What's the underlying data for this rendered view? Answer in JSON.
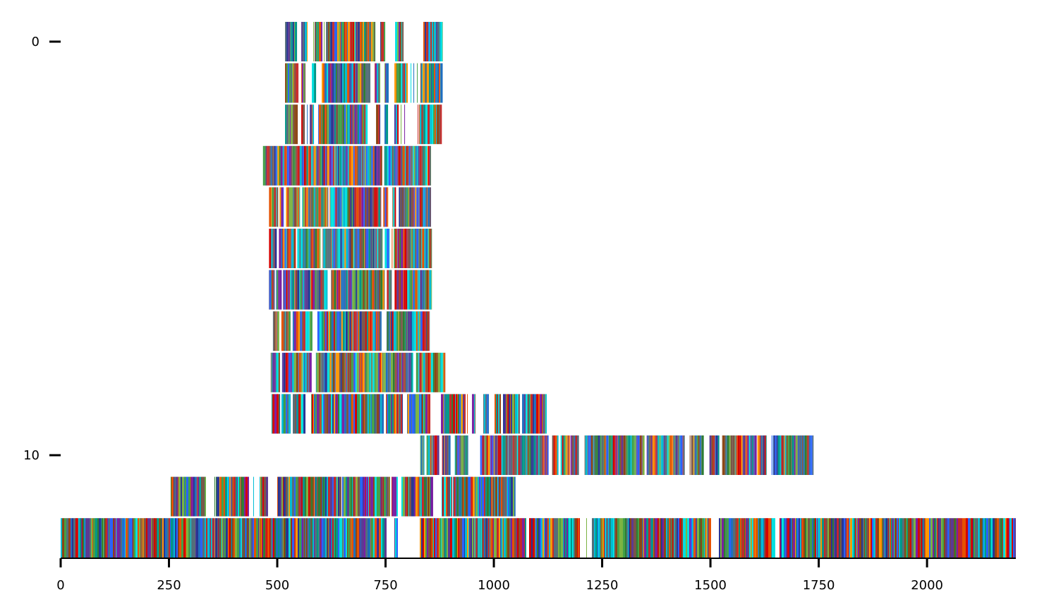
{
  "chart_data": {
    "type": "bar",
    "description_free": true,
    "orientation": "horizontal",
    "xlim": [
      0,
      2205
    ],
    "ylim": [
      -0.5,
      12.5
    ],
    "x_ticks": [
      0,
      250,
      500,
      750,
      1000,
      1250,
      1500,
      1750,
      2000
    ],
    "x_tick_labels": [
      "0",
      "250",
      "500",
      "750",
      "1000",
      "1250",
      "1500",
      "1750",
      "2000"
    ],
    "y_ticks": [
      0,
      10
    ],
    "y_tick_labels": [
      "0",
      "10"
    ],
    "palette": [
      "#1f6fbf",
      "#2e7d32",
      "#e65100",
      "#ff9800",
      "#8b4513",
      "#5c3a92",
      "#00bcd4",
      "#d50000",
      "#2962ff",
      "#009688",
      "#7cb342",
      "#795548",
      "#283593",
      "#00e0e0",
      "#43a047",
      "#c62828",
      "#7b1fa2",
      "#546e7a"
    ],
    "rows": [
      {
        "row": 0,
        "start": 518,
        "end": 882,
        "gaps": [
          [
            548,
            555
          ],
          [
            570,
            585
          ],
          [
            605,
            612
          ],
          [
            723,
            738
          ],
          [
            750,
            770
          ],
          [
            790,
            838
          ]
        ]
      },
      {
        "row": 1,
        "start": 518,
        "end": 882,
        "gaps": [
          [
            548,
            554
          ],
          [
            565,
            580
          ],
          [
            590,
            604
          ],
          [
            715,
            725
          ],
          [
            738,
            748
          ],
          [
            755,
            768
          ],
          [
            800,
            830
          ]
        ]
      },
      {
        "row": 2,
        "start": 518,
        "end": 880,
        "gaps": [
          [
            545,
            555
          ],
          [
            565,
            575
          ],
          [
            585,
            595
          ],
          [
            708,
            728
          ],
          [
            738,
            748
          ],
          [
            755,
            770
          ],
          [
            780,
            828
          ]
        ]
      },
      {
        "row": 3,
        "start": 467,
        "end": 855,
        "gaps": [
          [
            742,
            748
          ]
        ]
      },
      {
        "row": 4,
        "start": 481,
        "end": 855,
        "gaps": [
          [
            502,
            507
          ],
          [
            515,
            520
          ],
          [
            553,
            558
          ],
          [
            618,
            624
          ],
          [
            740,
            745
          ],
          [
            757,
            765
          ],
          [
            775,
            780
          ]
        ]
      },
      {
        "row": 5,
        "start": 481,
        "end": 857,
        "gaps": [
          [
            498,
            505
          ],
          [
            543,
            547
          ],
          [
            600,
            604
          ],
          [
            740,
            748
          ],
          [
            760,
            768
          ]
        ]
      },
      {
        "row": 6,
        "start": 481,
        "end": 857,
        "gaps": [
          [
            493,
            498
          ],
          [
            510,
            514
          ],
          [
            615,
            625
          ],
          [
            748,
            754
          ],
          [
            765,
            773
          ]
        ]
      },
      {
        "row": 7,
        "start": 490,
        "end": 852,
        "gaps": [
          [
            505,
            510
          ],
          [
            530,
            535
          ],
          [
            580,
            592
          ],
          [
            740,
            752
          ]
        ]
      },
      {
        "row": 8,
        "start": 485,
        "end": 888,
        "gaps": [
          [
            505,
            510
          ],
          [
            580,
            588
          ],
          [
            815,
            822
          ]
        ]
      },
      {
        "row": 9,
        "start": 487,
        "end": 1122,
        "gaps": [
          [
            508,
            512
          ],
          [
            530,
            534
          ],
          [
            565,
            578
          ],
          [
            745,
            752
          ],
          [
            790,
            800
          ],
          [
            855,
            878
          ],
          [
            935,
            950
          ],
          [
            960,
            975
          ],
          [
            988,
            1003
          ],
          [
            1015,
            1020
          ],
          [
            1060,
            1065
          ]
        ]
      },
      {
        "row": 10,
        "start": 830,
        "end": 1738,
        "gaps": [
          [
            840,
            846
          ],
          [
            872,
            880
          ],
          [
            898,
            910
          ],
          [
            940,
            970
          ],
          [
            1126,
            1136
          ],
          [
            1150,
            1155
          ],
          [
            1175,
            1178
          ],
          [
            1195,
            1210
          ],
          [
            1348,
            1352
          ],
          [
            1440,
            1455
          ],
          [
            1483,
            1500
          ],
          [
            1520,
            1530
          ],
          [
            1605,
            1610
          ],
          [
            1632,
            1645
          ]
        ]
      },
      {
        "row": 11,
        "start": 254,
        "end": 1050,
        "gaps": [
          [
            335,
            358
          ],
          [
            434,
            460
          ],
          [
            480,
            500
          ],
          [
            648,
            650
          ],
          [
            745,
            748
          ],
          [
            760,
            763
          ],
          [
            778,
            785
          ],
          [
            862,
            878
          ],
          [
            903,
            906
          ]
        ]
      },
      {
        "row": 12,
        "start": 0,
        "end": 2205,
        "gaps": [
          [
            750,
            770
          ],
          [
            778,
            830
          ],
          [
            1075,
            1080
          ],
          [
            1200,
            1225
          ],
          [
            1237,
            1240
          ],
          [
            1500,
            1518
          ],
          [
            1650,
            1660
          ]
        ]
      }
    ]
  }
}
